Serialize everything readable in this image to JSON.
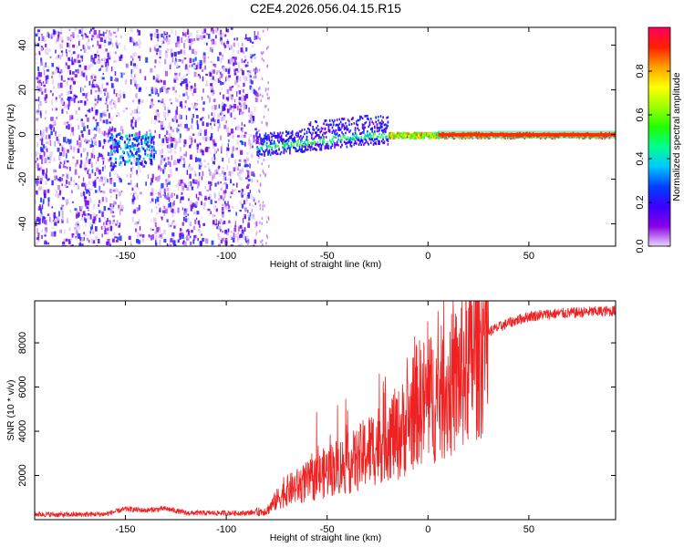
{
  "chart_data": [
    {
      "type": "heatmap",
      "title": "C2E4.2026.056.04.15.R15",
      "xlabel": "Height of straight line (km)",
      "ylabel": "Frequency (Hz)",
      "xlim": [
        -195,
        93
      ],
      "ylim": [
        -50,
        48
      ],
      "xticks": [
        -150,
        -100,
        -50,
        0,
        50
      ],
      "yticks": [
        -40,
        -20,
        0,
        20,
        40
      ],
      "colorbar": {
        "label": "Normalized spectral amplitude",
        "ticks": [
          0.0,
          0.2,
          0.4,
          0.6,
          0.8
        ],
        "range": [
          0,
          1
        ],
        "colors": [
          "#e8d8f8",
          "#8a00e8",
          "#3a00ff",
          "#0040ff",
          "#00c8ff",
          "#00ff90",
          "#20ff00",
          "#a0ff00",
          "#ffff00",
          "#ffa000",
          "#ff2000",
          "#ff0060"
        ]
      },
      "regions": {
        "noise_x": [
          -195,
          -85
        ],
        "noise_gaps_x": [
          [
            -152,
            -148
          ],
          [
            -143,
            -138
          ]
        ],
        "signal_track": [
          {
            "x": -155,
            "f": -5
          },
          {
            "x": -150,
            "f": -3
          },
          {
            "x": -145,
            "f": -4
          },
          {
            "x": -140,
            "f": -6
          },
          {
            "x": -80,
            "f": -5
          },
          {
            "x": -70,
            "f": -4
          },
          {
            "x": -60,
            "f": -3
          },
          {
            "x": -50,
            "f": -2
          },
          {
            "x": -40,
            "f": -1
          },
          {
            "x": -30,
            "f": 0
          },
          {
            "x": -20,
            "f": 0
          },
          {
            "x": -10,
            "f": 0
          },
          {
            "x": 0,
            "f": 0
          },
          {
            "x": 50,
            "f": 0
          },
          {
            "x": 93,
            "f": 0
          }
        ]
      },
      "grid": false
    },
    {
      "type": "line",
      "title": "",
      "xlabel": "Height of straight line (km)",
      "ylabel": "SNR (10 * v/v)",
      "xlim": [
        -195,
        93
      ],
      "ylim": [
        0,
        9900
      ],
      "xticks": [
        -150,
        -100,
        -50,
        0,
        50
      ],
      "yticks": [
        2000,
        4000,
        6000,
        8000
      ],
      "series": [
        {
          "color": "#ee2222",
          "x": [
            -195,
            -180,
            -160,
            -150,
            -140,
            -130,
            -120,
            -100,
            -90,
            -80,
            -75,
            -70,
            -65,
            -60,
            -55,
            -50,
            -45,
            -40,
            -35,
            -30,
            -25,
            -20,
            -15,
            -10,
            -5,
            0,
            5,
            10,
            15,
            20,
            25,
            30,
            40,
            50,
            60,
            70,
            80,
            93
          ],
          "values": [
            250,
            220,
            250,
            480,
            420,
            500,
            300,
            300,
            300,
            400,
            900,
            1300,
            1500,
            1700,
            1900,
            2200,
            2400,
            2500,
            2700,
            3100,
            3400,
            3900,
            3800,
            4400,
            5300,
            5400,
            5600,
            5900,
            6400,
            7100,
            7900,
            8500,
            8900,
            9200,
            9300,
            9350,
            9400,
            9450
          ]
        }
      ],
      "grid": false
    }
  ]
}
